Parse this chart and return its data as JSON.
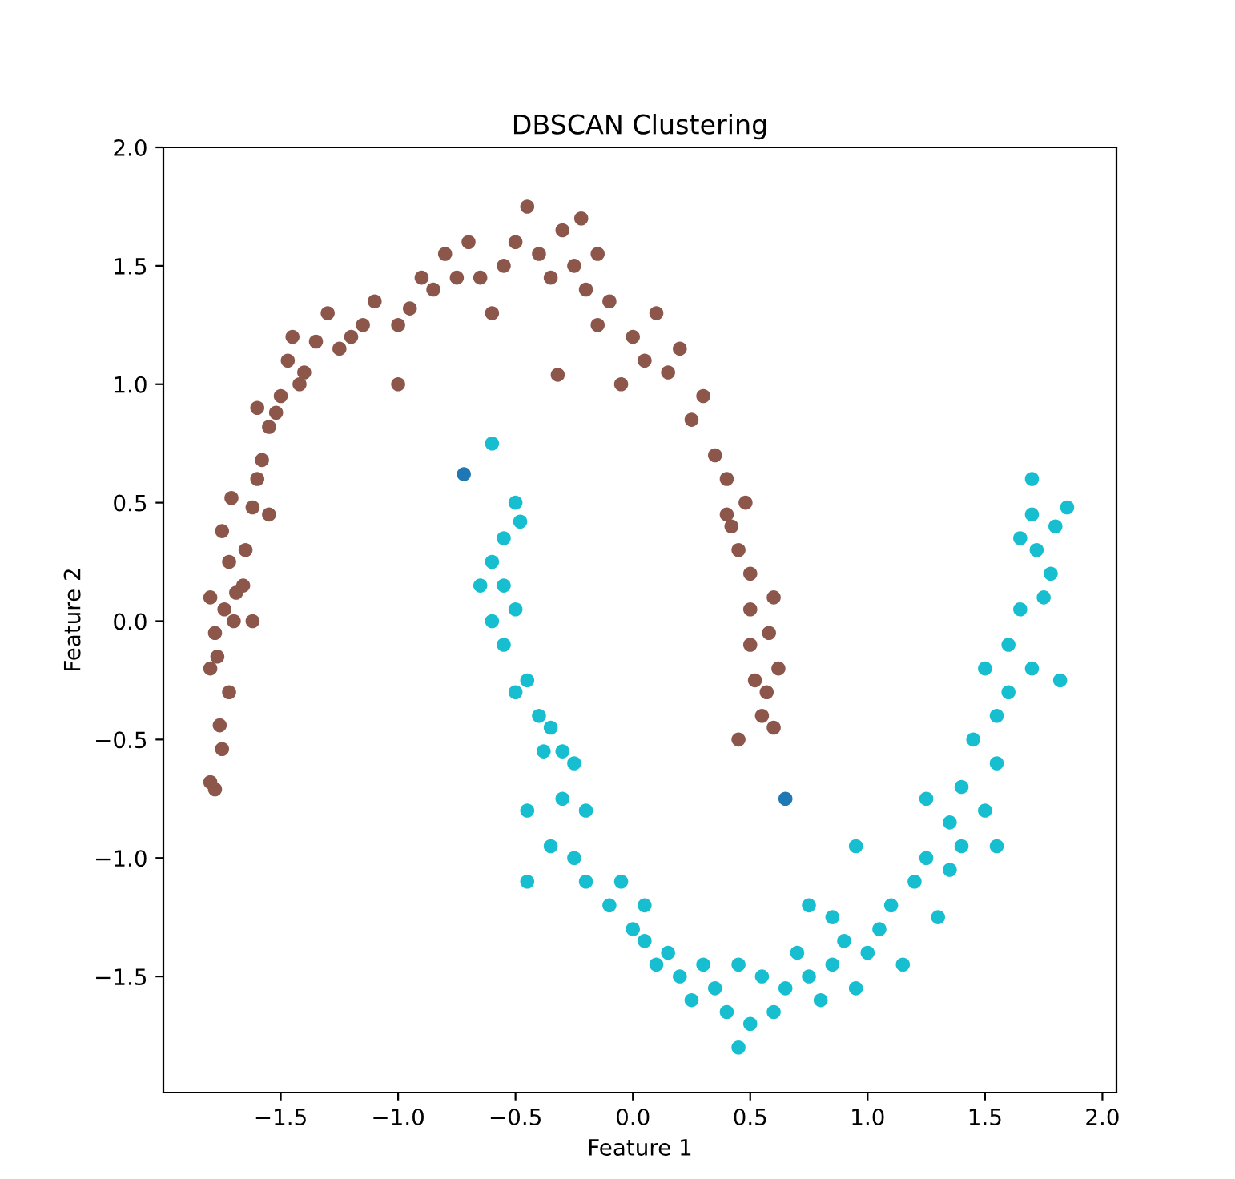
{
  "chart_data": {
    "type": "scatter",
    "title": "DBSCAN Clustering",
    "xlabel": "Feature 1",
    "ylabel": "Feature 2",
    "xlim": [
      -2.0,
      2.06
    ],
    "ylim": [
      -1.99,
      2.0
    ],
    "xticks": [
      {
        "value": -1.5,
        "label": "−1.5"
      },
      {
        "value": -1.0,
        "label": "−1.0"
      },
      {
        "value": -0.5,
        "label": "−0.5"
      },
      {
        "value": 0,
        "label": "0.0"
      },
      0.5,
      {
        "value": 1,
        "label": "1.0"
      },
      1.5,
      {
        "value": 2,
        "label": "2.0"
      }
    ],
    "yticks": [
      {
        "value": -1.5,
        "label": "−1.5"
      },
      {
        "value": -1.0,
        "label": "−1.0"
      },
      {
        "value": -0.5,
        "label": "−0.5"
      },
      {
        "value": 0,
        "label": "0.0"
      },
      0.5,
      {
        "value": 1,
        "label": "1.0"
      },
      1.5,
      {
        "value": 2,
        "label": "2.0"
      }
    ],
    "grid": false,
    "legend": false,
    "marker": "circle",
    "series": [
      {
        "color": "#1f77b4",
        "x": [
          -0.72,
          0.65
        ],
        "values": [
          0.62,
          -0.75
        ]
      },
      {
        "color": "#8c564b",
        "x": [
          -1.8,
          -1.78,
          -1.75,
          -1.76,
          -1.8,
          -1.77,
          -1.72,
          -1.78,
          -1.74,
          -1.8,
          -1.7,
          -1.69,
          -1.72,
          -1.75,
          -1.65,
          -1.66,
          -1.62,
          -1.71,
          -1.62,
          -1.6,
          -1.58,
          -1.55,
          -1.55,
          -1.52,
          -1.6,
          -1.5,
          -1.42,
          -1.47,
          -1.45,
          -1.4,
          -1.35,
          -1.3,
          -1.25,
          -1.2,
          -1.15,
          -1.1,
          -1.0,
          -1.0,
          -0.95,
          -0.9,
          -0.85,
          -0.8,
          -0.75,
          -0.7,
          -0.65,
          -0.6,
          -0.55,
          -0.5,
          -0.45,
          -0.4,
          -0.35,
          -0.3,
          -0.25,
          -0.32,
          -0.22,
          -0.2,
          -0.15,
          -0.15,
          -0.1,
          -0.05,
          0.0,
          0.05,
          0.1,
          0.15,
          0.2,
          0.25,
          0.3,
          0.35,
          0.4,
          0.42,
          0.45,
          0.5,
          0.5,
          0.5,
          0.52,
          0.55,
          0.6,
          0.45,
          0.6,
          0.62,
          0.57,
          0.4,
          0.48,
          0.58
        ],
        "values": [
          -0.68,
          -0.71,
          -0.54,
          -0.44,
          -0.2,
          -0.15,
          -0.3,
          -0.05,
          0.05,
          0.1,
          0.0,
          0.12,
          0.25,
          0.38,
          0.3,
          0.15,
          0.0,
          0.52,
          0.48,
          0.6,
          0.68,
          0.45,
          0.82,
          0.88,
          0.9,
          0.95,
          1.0,
          1.1,
          1.2,
          1.05,
          1.18,
          1.3,
          1.15,
          1.2,
          1.25,
          1.35,
          1.0,
          1.25,
          1.32,
          1.45,
          1.4,
          1.55,
          1.45,
          1.6,
          1.45,
          1.3,
          1.5,
          1.6,
          1.75,
          1.55,
          1.45,
          1.65,
          1.5,
          1.04,
          1.7,
          1.4,
          1.55,
          1.25,
          1.35,
          1.0,
          1.2,
          1.1,
          1.3,
          1.05,
          1.15,
          0.85,
          0.95,
          0.7,
          0.6,
          0.4,
          0.3,
          0.2,
          0.05,
          -0.1,
          -0.25,
          -0.4,
          -0.45,
          -0.5,
          0.1,
          -0.2,
          -0.3,
          0.45,
          0.5,
          -0.05
        ]
      },
      {
        "color": "#17becf",
        "x": [
          -0.6,
          -0.5,
          -0.48,
          -0.55,
          -0.6,
          -0.65,
          -0.55,
          -0.6,
          -0.5,
          -0.55,
          -0.45,
          -0.5,
          -0.4,
          -0.35,
          -0.3,
          -0.38,
          -0.25,
          -0.45,
          -0.3,
          -0.2,
          -0.35,
          -0.45,
          -0.25,
          -0.2,
          -0.1,
          -0.05,
          0.0,
          0.05,
          0.1,
          0.05,
          0.15,
          0.2,
          0.25,
          0.3,
          0.35,
          0.4,
          0.45,
          0.5,
          0.45,
          0.55,
          0.6,
          0.65,
          0.7,
          0.75,
          0.8,
          0.85,
          0.9,
          0.95,
          0.95,
          1.0,
          1.05,
          1.1,
          1.15,
          1.2,
          1.25,
          1.3,
          1.35,
          1.35,
          1.4,
          1.4,
          1.45,
          1.5,
          1.55,
          1.55,
          1.6,
          1.6,
          1.65,
          1.7,
          1.75,
          1.72,
          1.65,
          1.7,
          1.8,
          1.85,
          1.7,
          1.78,
          1.82,
          1.5,
          0.75,
          1.25,
          0.85,
          1.55
        ],
        "values": [
          0.75,
          0.5,
          0.42,
          0.35,
          0.25,
          0.15,
          0.15,
          0.0,
          0.05,
          -0.1,
          -0.25,
          -0.3,
          -0.4,
          -0.45,
          -0.55,
          -0.55,
          -0.6,
          -0.8,
          -0.75,
          -0.8,
          -0.95,
          -1.1,
          -1.0,
          -1.1,
          -1.2,
          -1.1,
          -1.3,
          -1.35,
          -1.45,
          -1.2,
          -1.4,
          -1.5,
          -1.6,
          -1.45,
          -1.55,
          -1.65,
          -1.8,
          -1.7,
          -1.45,
          -1.5,
          -1.65,
          -1.55,
          -1.4,
          -1.5,
          -1.6,
          -1.45,
          -1.35,
          -1.55,
          -0.95,
          -1.4,
          -1.3,
          -1.2,
          -1.45,
          -1.1,
          -1.0,
          -1.25,
          -1.05,
          -0.85,
          -0.95,
          -0.7,
          -0.5,
          -0.8,
          -0.6,
          -0.4,
          -0.3,
          -0.1,
          0.05,
          -0.2,
          0.1,
          0.3,
          0.35,
          0.45,
          0.4,
          0.48,
          0.6,
          0.2,
          -0.25,
          -0.2,
          -1.2,
          -0.75,
          -1.25,
          -0.95
        ]
      }
    ]
  }
}
